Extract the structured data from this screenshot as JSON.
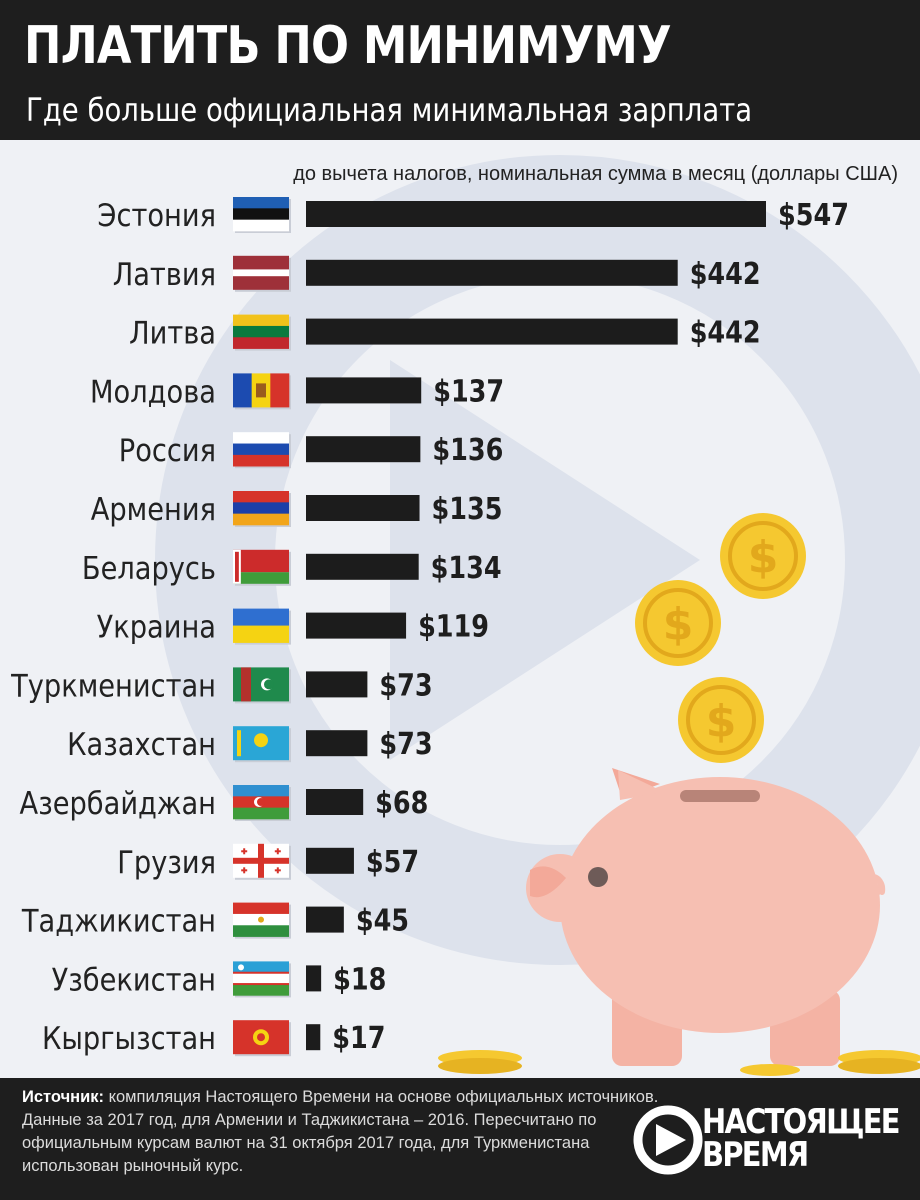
{
  "header": {
    "title": "ПЛАТИТЬ ПО МИНИМУМУ",
    "subtitle": "Где больше официальная минимальная зарплата"
  },
  "chart_data": {
    "type": "bar",
    "orientation": "horizontal",
    "unit_note": "до вычета налогов, номинальная сумма в месяц (доллары США)",
    "categories": [
      "Эстония",
      "Латвия",
      "Литва",
      "Молдова",
      "Россия",
      "Армения",
      "Беларусь",
      "Украина",
      "Туркменистан",
      "Казахстан",
      "Азербайджан",
      "Грузия",
      "Таджикистан",
      "Узбекистан",
      "Кыргызстан"
    ],
    "values": [
      547,
      442,
      442,
      137,
      136,
      135,
      134,
      119,
      73,
      73,
      68,
      57,
      45,
      18,
      17
    ],
    "value_labels": [
      "$547",
      "$442",
      "$442",
      "$137",
      "$136",
      "$135",
      "$134",
      "$119",
      "$73",
      "$73",
      "$68",
      "$57",
      "$45",
      "$18",
      "$17"
    ],
    "flags": [
      "estonia-flag",
      "latvia-flag",
      "lithuania-flag",
      "moldova-flag",
      "russia-flag",
      "armenia-flag",
      "belarus-flag",
      "ukraine-flag",
      "turkmenistan-flag",
      "kazakhstan-flag",
      "azerbaijan-flag",
      "georgia-flag",
      "tajikistan-flag",
      "uzbekistan-flag",
      "kyrgyzstan-flag"
    ],
    "bar_color": "#1c1c1c",
    "xlim": [
      0,
      547
    ]
  },
  "footer": {
    "source_label": "Источник:",
    "source_text": " компиляция Настоящего Времени на основе официальных источников. Данные за 2017 год, для Армении и Таджикистана – 2016. Пересчитано по официальным курсам валют на 31 октября 2017 года, для Туркменистана использован рыночный курс.",
    "logo_line1": "НАСТОЯЩЕЕ",
    "logo_line2": "ВРЕМЯ"
  },
  "colors": {
    "header_bg": "#1e1e1e",
    "page_bg": "#eff1f5",
    "coin": "#f5c830",
    "piggy": "#f6bfb2"
  }
}
